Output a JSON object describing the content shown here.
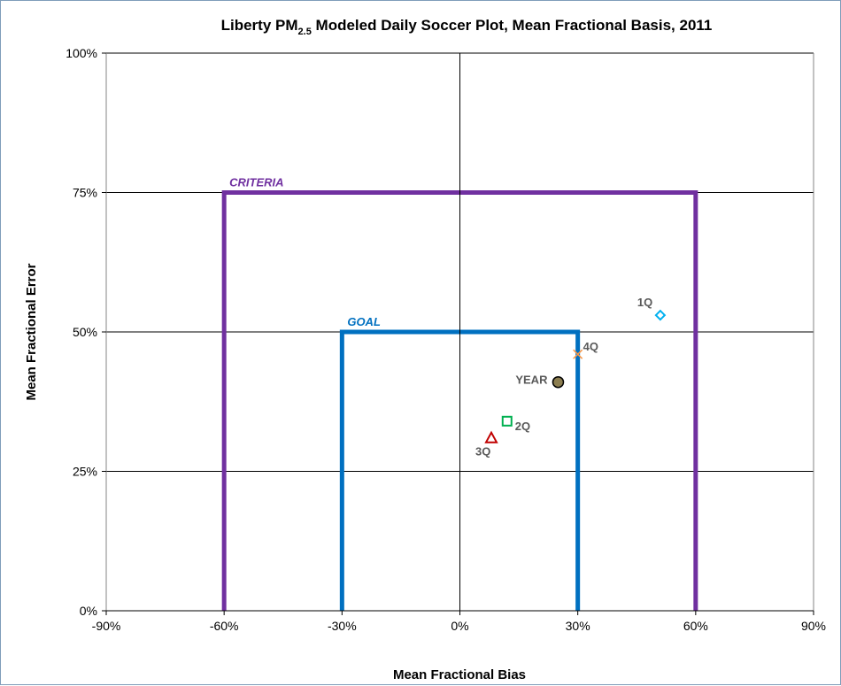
{
  "chart_data": {
    "type": "scatter",
    "title": {
      "prefix": "Liberty PM",
      "subscript": "2.5",
      "suffix": " Modeled Daily Soccer Plot, Mean Fractional Basis, 2011"
    },
    "xlabel": "Mean Fractional Bias",
    "ylabel": "Mean Fractional Error",
    "xlim": [
      -90,
      90
    ],
    "ylim": [
      0,
      100
    ],
    "x_ticks": [
      {
        "value": -90,
        "label": "-90%"
      },
      {
        "value": -60,
        "label": "-60%"
      },
      {
        "value": -30,
        "label": "-30%"
      },
      {
        "value": 0,
        "label": "0%"
      },
      {
        "value": 30,
        "label": "30%"
      },
      {
        "value": 60,
        "label": "60%"
      },
      {
        "value": 90,
        "label": "90%"
      }
    ],
    "y_ticks": [
      {
        "value": 0,
        "label": "0%"
      },
      {
        "value": 25,
        "label": "25%"
      },
      {
        "value": 50,
        "label": "50%"
      },
      {
        "value": 75,
        "label": "75%"
      },
      {
        "value": 100,
        "label": "100%"
      }
    ],
    "grid": "horizontal",
    "boxes": [
      {
        "label": "CRITERIA",
        "bias_limit": 60,
        "error_limit": 75,
        "color": "#7030a0"
      },
      {
        "label": "GOAL",
        "bias_limit": 30,
        "error_limit": 50,
        "color": "#0070c0"
      }
    ],
    "points": [
      {
        "label": "1Q",
        "x": 51,
        "y": 53,
        "marker": "diamond",
        "color": "#00b0f0"
      },
      {
        "label": "2Q",
        "x": 12,
        "y": 34,
        "marker": "square",
        "color": "#00b050"
      },
      {
        "label": "3Q",
        "x": 8,
        "y": 31,
        "marker": "triangle",
        "color": "#c00000"
      },
      {
        "label": "4Q",
        "x": 30,
        "y": 46,
        "marker": "x",
        "color": "#f79646"
      },
      {
        "label": "YEAR",
        "x": 25,
        "y": 41,
        "marker": "circle",
        "color": "#8c7e50"
      }
    ]
  }
}
